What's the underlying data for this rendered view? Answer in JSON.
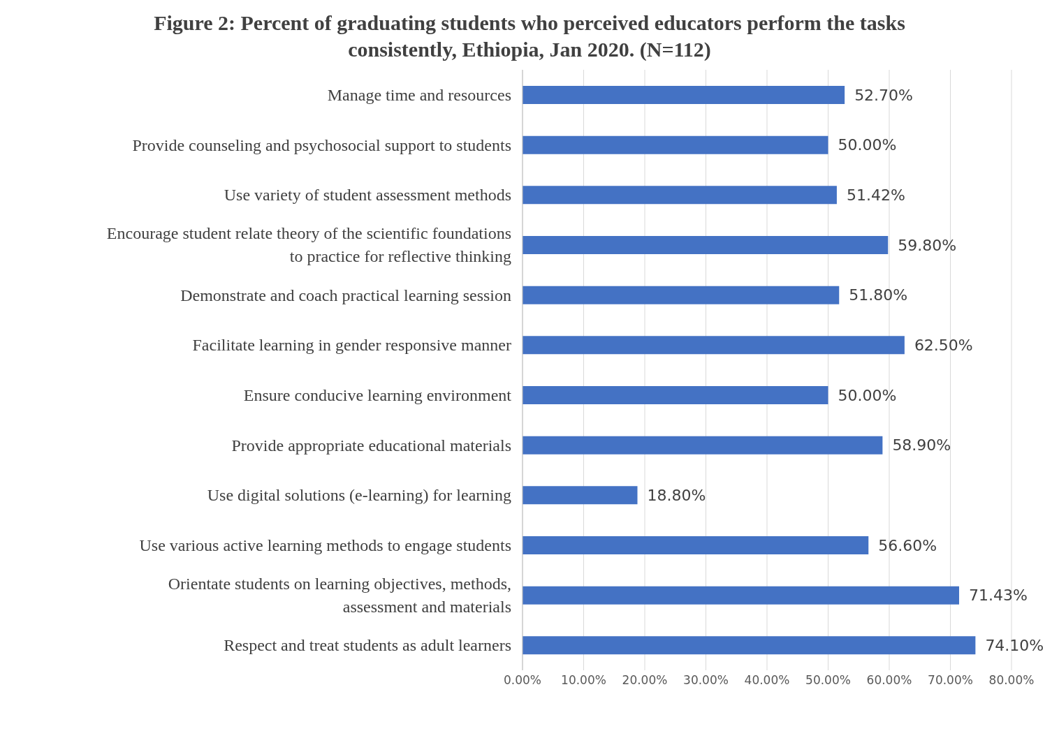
{
  "chart_data": {
    "type": "bar",
    "orientation": "horizontal",
    "title": "Figure 2: Percent of graduating students who perceived educators perform the tasks consistently, Ethiopia, Jan 2020. (N=112)",
    "categories": [
      "Manage time and resources",
      "Provide counseling and psychosocial support to students",
      "Use variety of student assessment methods",
      "Encourage student relate theory of the scientific foundations to practice for reflective thinking",
      "Demonstrate and coach practical learning session",
      "Facilitate learning in gender responsive manner",
      "Ensure conducive learning environment",
      "Provide appropriate educational materials",
      "Use digital solutions (e-learning) for learning",
      "Use various active learning methods to engage students",
      "Orientate students on learning objectives, methods, assessment and materials",
      "Respect and treat students as adult learners"
    ],
    "values": [
      52.7,
      50,
      51.42,
      59.8,
      51.8,
      62.5,
      50,
      58.9,
      18.8,
      56.6,
      71.43,
      74.1
    ],
    "value_labels": [
      "52.70%",
      "50.00%",
      "51.42%",
      "59.80%",
      "51.80%",
      "62.50%",
      "50.00%",
      "58.90%",
      "18.80%",
      "56.60%",
      "71.43%",
      "74.10%"
    ],
    "color": "#4472c4",
    "xlim": [
      0,
      80
    ],
    "xticks": [
      {
        "value": 0,
        "label": "0.00%"
      },
      {
        "value": 10,
        "label": "10.00%"
      },
      {
        "value": 20,
        "label": "20.00%"
      },
      {
        "value": 30,
        "label": "30.00%"
      },
      {
        "value": 40,
        "label": "40.00%"
      },
      {
        "value": 50,
        "label": "50.00%"
      },
      {
        "value": 60,
        "label": "60.00%"
      },
      {
        "value": 70,
        "label": "70.00%"
      },
      {
        "value": 80,
        "label": "80.00%"
      }
    ],
    "grid": "x"
  }
}
